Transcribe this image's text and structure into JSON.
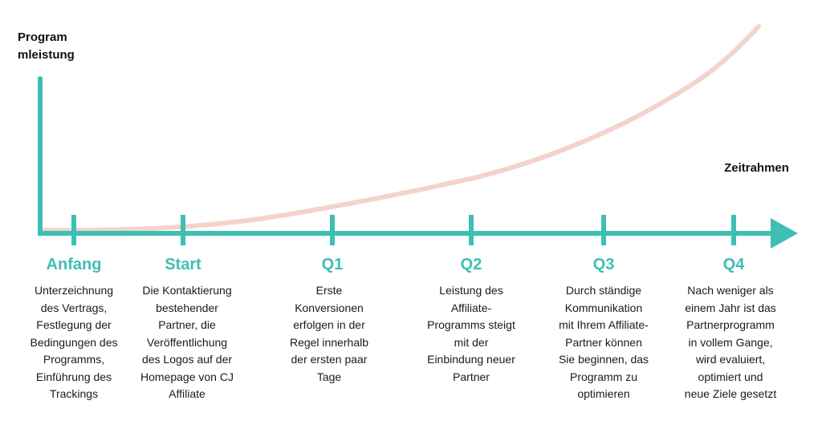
{
  "y_axis_label": "Program\nmleistung",
  "x_axis_label": "Zeitrahmen",
  "colors": {
    "axis": "#3dbfb3",
    "curve": "#f4d3cc",
    "title": "#3dbfb3",
    "text": "#1a1a1a"
  },
  "phases": [
    {
      "title": "Anfang",
      "description": "Unterzeichnung\ndes Vertrags,\nFestlegung der\nBedingungen des\nProgramms,\nEinführung des\nTrackings"
    },
    {
      "title": "Start",
      "description": "Die Kontaktierung\nbestehender\nPartner, die\nVeröffentlichung\ndes Logos auf der\nHomepage von CJ\nAffiliate"
    },
    {
      "title": "Q1",
      "description": "Erste\nKonversionen\nerfolgen in der\nRegel innerhalb\nder ersten paar\nTage"
    },
    {
      "title": "Q2",
      "description": "Leistung des\nAffiliate-\nProgramms steigt\nmit der\nEinbindung neuer\nPartner"
    },
    {
      "title": "Q3",
      "description": "Durch ständige\nKommunikation\nmit Ihrem Affiliate-\nPartner können\nSie beginnen, das\nProgramm zu\noptimieren"
    },
    {
      "title": "Q4",
      "description": "Nach weniger als\neinem Jahr ist das\nPartnerprogramm\nin vollem Gange,\nwird evaluiert,\noptimiert und\nneue Ziele gesetzt"
    }
  ]
}
